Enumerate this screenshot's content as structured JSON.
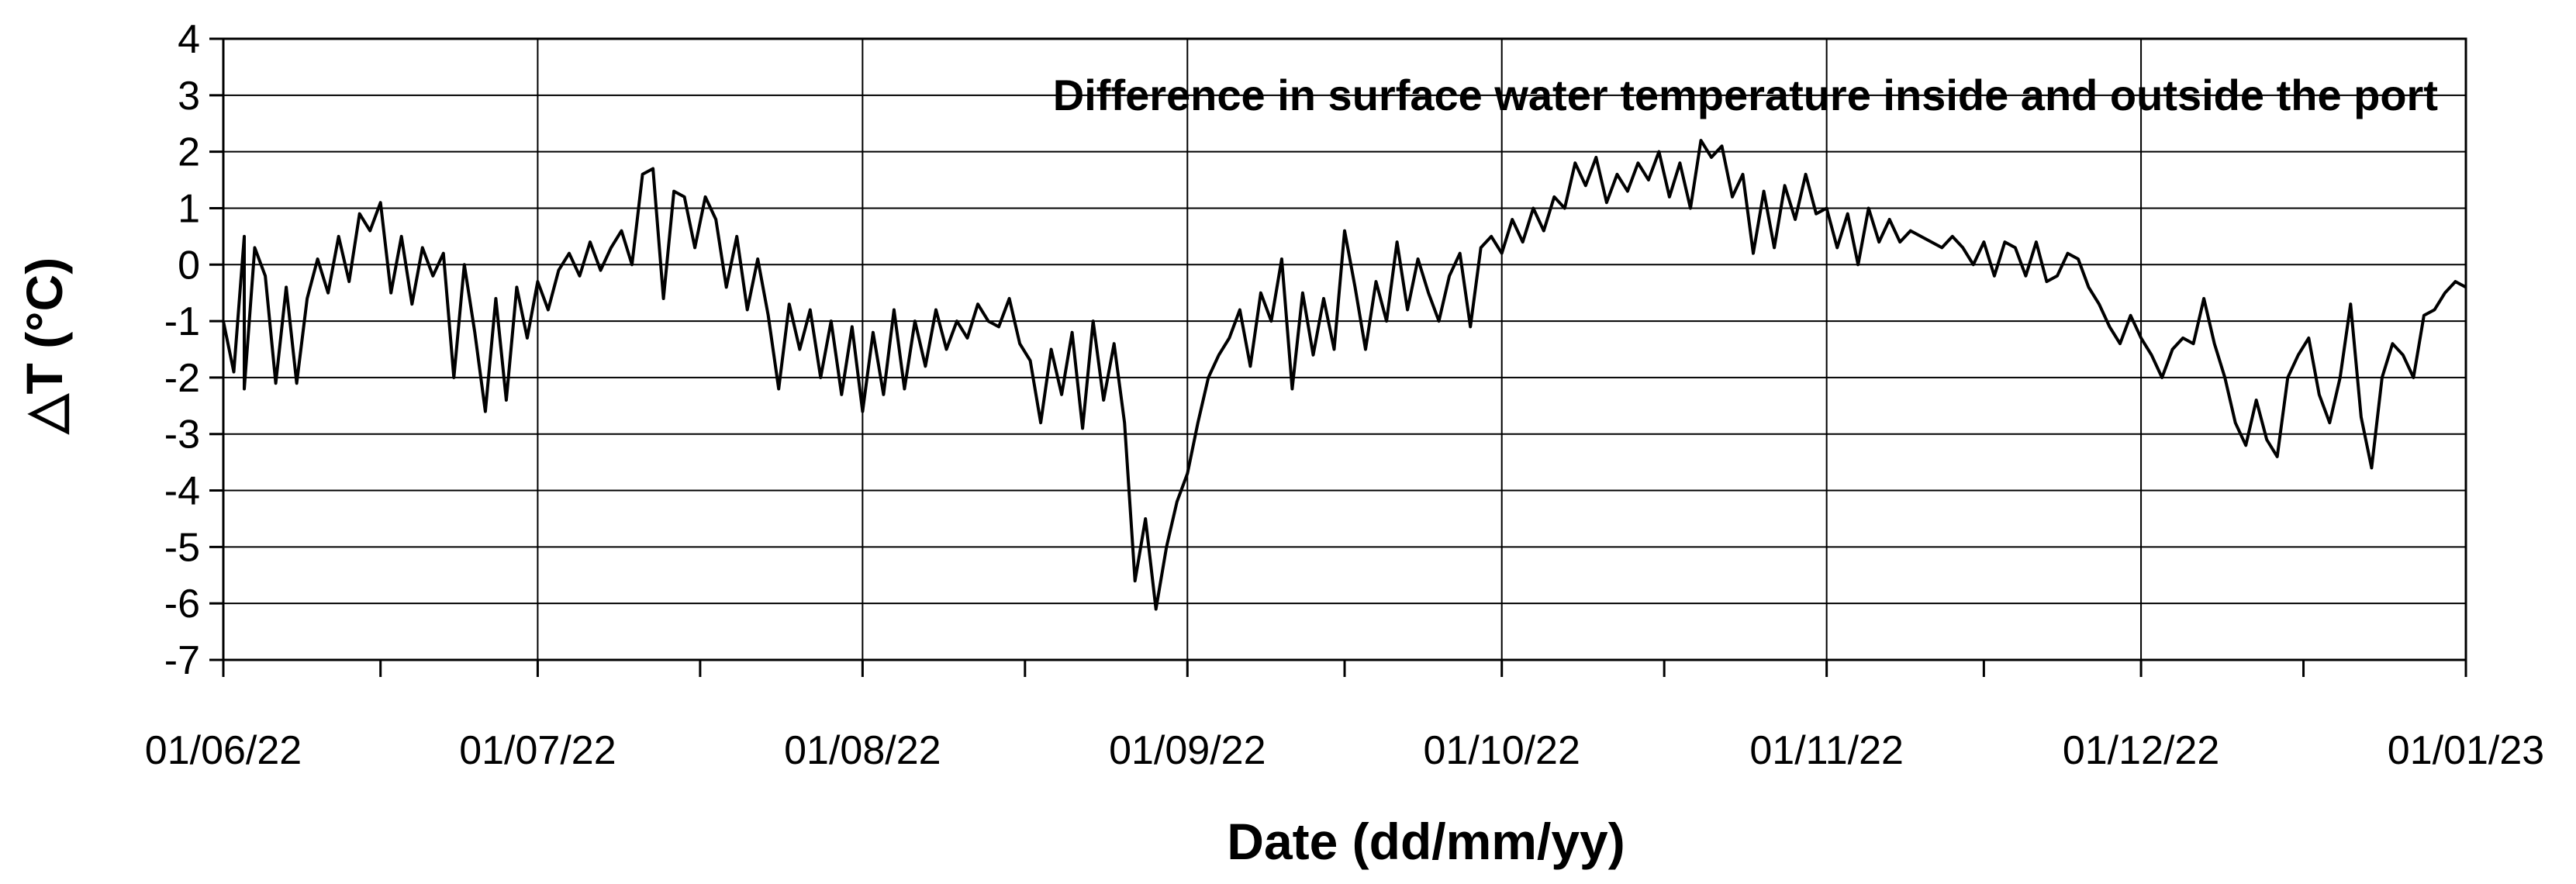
{
  "chart_data": {
    "type": "line",
    "title": "Difference in surface water temperature inside and outside the port",
    "xlabel": "Date (dd/mm/yy)",
    "ylabel": "△T (°C)",
    "ylim": [
      -7,
      4
    ],
    "yticks": [
      "4",
      "3",
      "2",
      "1",
      "0",
      "-1",
      "-2",
      "-3",
      "-4",
      "-5",
      "-6",
      "-7"
    ],
    "xlim": [
      "2022-06-01",
      "2023-01-01"
    ],
    "xticks": [
      {
        "date": "2022-06-01",
        "label": "01/06/22"
      },
      {
        "date": "2022-07-01",
        "label": "01/07/22"
      },
      {
        "date": "2022-08-01",
        "label": "01/08/22"
      },
      {
        "date": "2022-09-01",
        "label": "01/09/22"
      },
      {
        "date": "2022-10-01",
        "label": "01/10/22"
      },
      {
        "date": "2022-11-01",
        "label": "01/11/22"
      },
      {
        "date": "2022-12-01",
        "label": "01/12/22"
      },
      {
        "date": "2023-01-01",
        "label": "01/01/23"
      }
    ],
    "grid": true,
    "series": [
      {
        "color": "#000000",
        "points": [
          [
            "2022-06-01",
            -1.0
          ],
          [
            "2022-06-02",
            -1.9
          ],
          [
            "2022-06-03",
            0.5
          ],
          [
            "2022-06-03",
            -2.2
          ],
          [
            "2022-06-04",
            0.3
          ],
          [
            "2022-06-05",
            -0.2
          ],
          [
            "2022-06-06",
            -2.1
          ],
          [
            "2022-06-07",
            -0.4
          ],
          [
            "2022-06-08",
            -2.1
          ],
          [
            "2022-06-09",
            -0.6
          ],
          [
            "2022-06-10",
            0.1
          ],
          [
            "2022-06-11",
            -0.5
          ],
          [
            "2022-06-12",
            0.5
          ],
          [
            "2022-06-13",
            -0.3
          ],
          [
            "2022-06-14",
            0.9
          ],
          [
            "2022-06-15",
            0.6
          ],
          [
            "2022-06-16",
            1.1
          ],
          [
            "2022-06-17",
            -0.5
          ],
          [
            "2022-06-18",
            0.5
          ],
          [
            "2022-06-19",
            -0.7
          ],
          [
            "2022-06-20",
            0.3
          ],
          [
            "2022-06-21",
            -0.2
          ],
          [
            "2022-06-22",
            0.2
          ],
          [
            "2022-06-23",
            -2.0
          ],
          [
            "2022-06-24",
            0.0
          ],
          [
            "2022-06-25",
            -1.2
          ],
          [
            "2022-06-26",
            -2.6
          ],
          [
            "2022-06-27",
            -0.6
          ],
          [
            "2022-06-28",
            -2.4
          ],
          [
            "2022-06-29",
            -0.4
          ],
          [
            "2022-06-30",
            -1.3
          ],
          [
            "2022-07-01",
            -0.3
          ],
          [
            "2022-07-02",
            -0.8
          ],
          [
            "2022-07-03",
            -0.1
          ],
          [
            "2022-07-04",
            0.2
          ],
          [
            "2022-07-05",
            -0.2
          ],
          [
            "2022-07-06",
            0.4
          ],
          [
            "2022-07-07",
            -0.1
          ],
          [
            "2022-07-08",
            0.3
          ],
          [
            "2022-07-09",
            0.6
          ],
          [
            "2022-07-10",
            0.0
          ],
          [
            "2022-07-11",
            1.6
          ],
          [
            "2022-07-12",
            1.7
          ],
          [
            "2022-07-13",
            -0.6
          ],
          [
            "2022-07-14",
            1.3
          ],
          [
            "2022-07-15",
            1.2
          ],
          [
            "2022-07-16",
            0.3
          ],
          [
            "2022-07-17",
            1.2
          ],
          [
            "2022-07-18",
            0.8
          ],
          [
            "2022-07-19",
            -0.4
          ],
          [
            "2022-07-20",
            0.5
          ],
          [
            "2022-07-21",
            -0.8
          ],
          [
            "2022-07-22",
            0.1
          ],
          [
            "2022-07-23",
            -0.9
          ],
          [
            "2022-07-24",
            -2.2
          ],
          [
            "2022-07-25",
            -0.7
          ],
          [
            "2022-07-26",
            -1.5
          ],
          [
            "2022-07-27",
            -0.8
          ],
          [
            "2022-07-28",
            -2.0
          ],
          [
            "2022-07-29",
            -1.0
          ],
          [
            "2022-07-30",
            -2.3
          ],
          [
            "2022-07-31",
            -1.1
          ],
          [
            "2022-08-01",
            -2.6
          ],
          [
            "2022-08-02",
            -1.2
          ],
          [
            "2022-08-03",
            -2.3
          ],
          [
            "2022-08-04",
            -0.8
          ],
          [
            "2022-08-05",
            -2.2
          ],
          [
            "2022-08-06",
            -1.0
          ],
          [
            "2022-08-07",
            -1.8
          ],
          [
            "2022-08-08",
            -0.8
          ],
          [
            "2022-08-09",
            -1.5
          ],
          [
            "2022-08-10",
            -1.0
          ],
          [
            "2022-08-11",
            -1.3
          ],
          [
            "2022-08-12",
            -0.7
          ],
          [
            "2022-08-13",
            -1.0
          ],
          [
            "2022-08-14",
            -1.1
          ],
          [
            "2022-08-15",
            -0.6
          ],
          [
            "2022-08-16",
            -1.4
          ],
          [
            "2022-08-17",
            -1.7
          ],
          [
            "2022-08-18",
            -2.8
          ],
          [
            "2022-08-19",
            -1.5
          ],
          [
            "2022-08-20",
            -2.3
          ],
          [
            "2022-08-21",
            -1.2
          ],
          [
            "2022-08-22",
            -2.9
          ],
          [
            "2022-08-23",
            -1.0
          ],
          [
            "2022-08-24",
            -2.4
          ],
          [
            "2022-08-25",
            -1.4
          ],
          [
            "2022-08-26",
            -2.8
          ],
          [
            "2022-08-27",
            -5.6
          ],
          [
            "2022-08-28",
            -4.5
          ],
          [
            "2022-08-29",
            -6.1
          ],
          [
            "2022-08-30",
            -5.0
          ],
          [
            "2022-08-31",
            -4.2
          ],
          [
            "2022-09-01",
            -3.7
          ],
          [
            "2022-09-02",
            -2.8
          ],
          [
            "2022-09-03",
            -2.0
          ],
          [
            "2022-09-04",
            -1.6
          ],
          [
            "2022-09-05",
            -1.3
          ],
          [
            "2022-09-06",
            -0.8
          ],
          [
            "2022-09-07",
            -1.8
          ],
          [
            "2022-09-08",
            -0.5
          ],
          [
            "2022-09-09",
            -1.0
          ],
          [
            "2022-09-10",
            0.1
          ],
          [
            "2022-09-11",
            -2.2
          ],
          [
            "2022-09-12",
            -0.5
          ],
          [
            "2022-09-13",
            -1.6
          ],
          [
            "2022-09-14",
            -0.6
          ],
          [
            "2022-09-15",
            -1.5
          ],
          [
            "2022-09-16",
            0.6
          ],
          [
            "2022-09-17",
            -0.4
          ],
          [
            "2022-09-18",
            -1.5
          ],
          [
            "2022-09-19",
            -0.3
          ],
          [
            "2022-09-20",
            -1.0
          ],
          [
            "2022-09-21",
            0.4
          ],
          [
            "2022-09-22",
            -0.8
          ],
          [
            "2022-09-23",
            0.1
          ],
          [
            "2022-09-24",
            -0.5
          ],
          [
            "2022-09-25",
            -1.0
          ],
          [
            "2022-09-26",
            -0.2
          ],
          [
            "2022-09-27",
            0.2
          ],
          [
            "2022-09-28",
            -1.1
          ],
          [
            "2022-09-29",
            0.3
          ],
          [
            "2022-09-30",
            0.5
          ],
          [
            "2022-10-01",
            0.2
          ],
          [
            "2022-10-02",
            0.8
          ],
          [
            "2022-10-03",
            0.4
          ],
          [
            "2022-10-04",
            1.0
          ],
          [
            "2022-10-05",
            0.6
          ],
          [
            "2022-10-06",
            1.2
          ],
          [
            "2022-10-07",
            1.0
          ],
          [
            "2022-10-08",
            1.8
          ],
          [
            "2022-10-09",
            1.4
          ],
          [
            "2022-10-10",
            1.9
          ],
          [
            "2022-10-11",
            1.1
          ],
          [
            "2022-10-12",
            1.6
          ],
          [
            "2022-10-13",
            1.3
          ],
          [
            "2022-10-14",
            1.8
          ],
          [
            "2022-10-15",
            1.5
          ],
          [
            "2022-10-16",
            2.0
          ],
          [
            "2022-10-17",
            1.2
          ],
          [
            "2022-10-18",
            1.8
          ],
          [
            "2022-10-19",
            1.0
          ],
          [
            "2022-10-20",
            2.2
          ],
          [
            "2022-10-21",
            1.9
          ],
          [
            "2022-10-22",
            2.1
          ],
          [
            "2022-10-23",
            1.2
          ],
          [
            "2022-10-24",
            1.6
          ],
          [
            "2022-10-25",
            0.2
          ],
          [
            "2022-10-26",
            1.3
          ],
          [
            "2022-10-27",
            0.3
          ],
          [
            "2022-10-28",
            1.4
          ],
          [
            "2022-10-29",
            0.8
          ],
          [
            "2022-10-30",
            1.6
          ],
          [
            "2022-10-31",
            0.9
          ],
          [
            "2022-11-01",
            1.0
          ],
          [
            "2022-11-02",
            0.3
          ],
          [
            "2022-11-03",
            0.9
          ],
          [
            "2022-11-04",
            0.0
          ],
          [
            "2022-11-05",
            1.0
          ],
          [
            "2022-11-06",
            0.4
          ],
          [
            "2022-11-07",
            0.8
          ],
          [
            "2022-11-08",
            0.4
          ],
          [
            "2022-11-09",
            0.6
          ],
          [
            "2022-11-10",
            0.5
          ],
          [
            "2022-11-11",
            0.4
          ],
          [
            "2022-11-12",
            0.3
          ],
          [
            "2022-11-13",
            0.5
          ],
          [
            "2022-11-14",
            0.3
          ],
          [
            "2022-11-15",
            0.0
          ],
          [
            "2022-11-16",
            0.4
          ],
          [
            "2022-11-17",
            -0.2
          ],
          [
            "2022-11-18",
            0.4
          ],
          [
            "2022-11-19",
            0.3
          ],
          [
            "2022-11-20",
            -0.2
          ],
          [
            "2022-11-21",
            0.4
          ],
          [
            "2022-11-22",
            -0.3
          ],
          [
            "2022-11-23",
            -0.2
          ],
          [
            "2022-11-24",
            0.2
          ],
          [
            "2022-11-25",
            0.1
          ],
          [
            "2022-11-26",
            -0.4
          ],
          [
            "2022-11-27",
            -0.7
          ],
          [
            "2022-11-28",
            -1.1
          ],
          [
            "2022-11-29",
            -1.4
          ],
          [
            "2022-11-30",
            -0.9
          ],
          [
            "2022-12-01",
            -1.3
          ],
          [
            "2022-12-02",
            -1.6
          ],
          [
            "2022-12-03",
            -2.0
          ],
          [
            "2022-12-04",
            -1.5
          ],
          [
            "2022-12-05",
            -1.3
          ],
          [
            "2022-12-06",
            -1.4
          ],
          [
            "2022-12-07",
            -0.6
          ],
          [
            "2022-12-08",
            -1.4
          ],
          [
            "2022-12-09",
            -2.0
          ],
          [
            "2022-12-10",
            -2.8
          ],
          [
            "2022-12-11",
            -3.2
          ],
          [
            "2022-12-12",
            -2.4
          ],
          [
            "2022-12-13",
            -3.1
          ],
          [
            "2022-12-14",
            -3.4
          ],
          [
            "2022-12-15",
            -2.0
          ],
          [
            "2022-12-16",
            -1.6
          ],
          [
            "2022-12-17",
            -1.3
          ],
          [
            "2022-12-18",
            -2.3
          ],
          [
            "2022-12-19",
            -2.8
          ],
          [
            "2022-12-20",
            -2.0
          ],
          [
            "2022-12-21",
            -0.7
          ],
          [
            "2022-12-22",
            -2.7
          ],
          [
            "2022-12-23",
            -3.6
          ],
          [
            "2022-12-24",
            -2.0
          ],
          [
            "2022-12-25",
            -1.4
          ],
          [
            "2022-12-26",
            -1.6
          ],
          [
            "2022-12-27",
            -2.0
          ],
          [
            "2022-12-28",
            -0.9
          ],
          [
            "2022-12-29",
            -0.8
          ],
          [
            "2022-12-30",
            -0.5
          ],
          [
            "2022-12-31",
            -0.3
          ],
          [
            "2023-01-01",
            -0.4
          ]
        ]
      }
    ]
  }
}
